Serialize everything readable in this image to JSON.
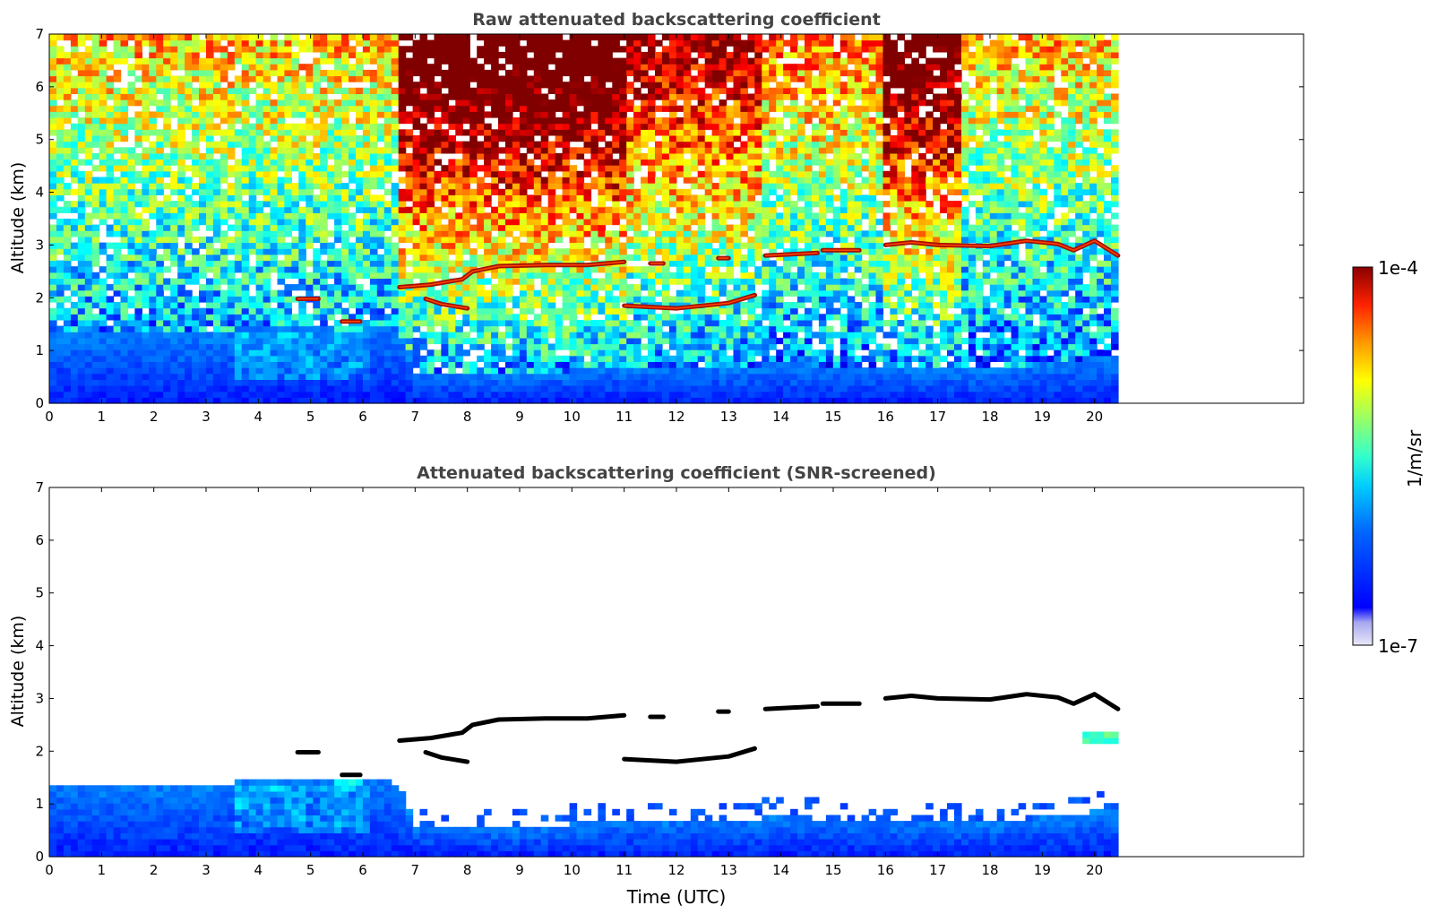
{
  "colors": {
    "background": "#ffffff",
    "title_text": "#444444",
    "axis": "#000000",
    "cloud_core_screened": "#000000",
    "colormap": "jet"
  },
  "colorbar": {
    "label": "1/m/sr",
    "max_label": "1e-4",
    "min_label": "1e-7",
    "scale": "log",
    "range": [
      1e-07,
      0.0001
    ]
  },
  "chart_data": [
    {
      "id": "raw",
      "type": "heatmap",
      "title": "Raw attenuated backscattering coefficient",
      "xlabel": "",
      "ylabel": "Altitude (km)",
      "xlim": [
        0,
        24
      ],
      "ylim": [
        0,
        7
      ],
      "x_data_extent": [
        0,
        20.45
      ],
      "xticks": [
        "0",
        "1",
        "2",
        "3",
        "4",
        "5",
        "6",
        "7",
        "8",
        "9",
        "10",
        "11",
        "12",
        "13",
        "14",
        "15",
        "16",
        "17",
        "18",
        "19",
        "20"
      ],
      "yticks": [
        "0",
        "1",
        "2",
        "3",
        "4",
        "5",
        "6",
        "7"
      ],
      "screened": false,
      "features": {
        "boundary_layer_top_km": [
          [
            0,
            1.4
          ],
          [
            1,
            1.35
          ],
          [
            2,
            1.3
          ],
          [
            3,
            1.3
          ],
          [
            4,
            1.5
          ],
          [
            5,
            1.5
          ],
          [
            6,
            1.45
          ],
          [
            6.7,
            1.4
          ],
          [
            7,
            0.6
          ],
          [
            9,
            0.55
          ],
          [
            11,
            0.7
          ],
          [
            13,
            0.7
          ],
          [
            14,
            0.75
          ],
          [
            16,
            0.7
          ],
          [
            18,
            0.65
          ],
          [
            20,
            0.85
          ],
          [
            20.45,
            0.9
          ]
        ],
        "cloud_layers": [
          {
            "x": [
              4.75,
              5.15
            ],
            "y": [
              1.98,
              1.98
            ]
          },
          {
            "x": [
              5.6,
              5.95
            ],
            "y": [
              1.55,
              1.55
            ]
          },
          {
            "x": [
              6.7,
              7.3,
              7.9,
              8.1,
              8.6,
              9.5,
              10.3,
              11.0
            ],
            "y": [
              2.2,
              2.25,
              2.35,
              2.5,
              2.6,
              2.62,
              2.62,
              2.68
            ]
          },
          {
            "x": [
              7.2,
              7.5,
              8.0
            ],
            "y": [
              1.98,
              1.88,
              1.8
            ]
          },
          {
            "x": [
              11.0,
              12.0,
              13.0,
              13.5
            ],
            "y": [
              1.85,
              1.8,
              1.9,
              2.05
            ]
          },
          {
            "x": [
              11.5,
              11.75
            ],
            "y": [
              2.65,
              2.65
            ]
          },
          {
            "x": [
              12.8,
              13.0
            ],
            "y": [
              2.75,
              2.75
            ]
          },
          {
            "x": [
              13.7,
              14.7
            ],
            "y": [
              2.8,
              2.85
            ]
          },
          {
            "x": [
              14.8,
              15.5
            ],
            "y": [
              2.9,
              2.9
            ]
          },
          {
            "x": [
              16.0,
              16.5,
              17.0,
              18.0,
              18.7,
              19.3,
              19.6,
              20.0,
              20.45
            ],
            "y": [
              3.0,
              3.05,
              3.0,
              2.98,
              3.08,
              3.02,
              2.9,
              3.08,
              2.8
            ]
          }
        ]
      }
    },
    {
      "id": "screened",
      "type": "heatmap",
      "title": "Attenuated backscattering coefficient (SNR-screened)",
      "xlabel": "Time (UTC)",
      "ylabel": "Altitude (km)",
      "xlim": [
        0,
        24
      ],
      "ylim": [
        0,
        7
      ],
      "x_data_extent": [
        0,
        20.45
      ],
      "xticks": [
        "0",
        "1",
        "2",
        "3",
        "4",
        "5",
        "6",
        "7",
        "8",
        "9",
        "10",
        "11",
        "12",
        "13",
        "14",
        "15",
        "16",
        "17",
        "18",
        "19",
        "20"
      ],
      "yticks": [
        "0",
        "1",
        "2",
        "3",
        "4",
        "5",
        "6",
        "7"
      ],
      "screened": true
    }
  ]
}
